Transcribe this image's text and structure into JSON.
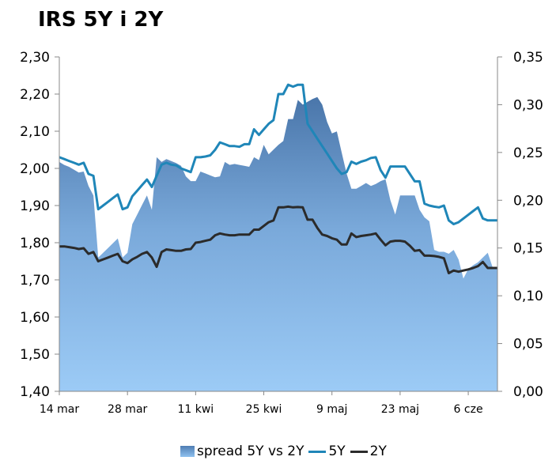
{
  "chart_data": {
    "type": "line",
    "title": "IRS 5Y i 2Y",
    "x_tick_labels": [
      "14 mar",
      "28 mar",
      "11 kwi",
      "25 kwi",
      "9 maj",
      "23 maj",
      "6 cze"
    ],
    "left_axis": {
      "ylim": [
        1.4,
        2.3
      ],
      "ticks": [
        "1,40",
        "1,50",
        "1,60",
        "1,70",
        "1,80",
        "1,90",
        "2,00",
        "2,10",
        "2,20",
        "2,30"
      ]
    },
    "right_axis": {
      "ylim": [
        0.0,
        0.35
      ],
      "ticks": [
        "0,00",
        "0,05",
        "0,10",
        "0,15",
        "0,20",
        "0,25",
        "0,30",
        "0,35"
      ]
    },
    "x_day": [
      0,
      1,
      2,
      3,
      4,
      5,
      6,
      7,
      8,
      9,
      10,
      11,
      12,
      13,
      14,
      15,
      16,
      17,
      18,
      19,
      20,
      21,
      22,
      23,
      24,
      25,
      26,
      27,
      28,
      29,
      30,
      31,
      32,
      33,
      34,
      35,
      36,
      37,
      38,
      39,
      40,
      41,
      42,
      43,
      44,
      45,
      46,
      47,
      48,
      49,
      50,
      51,
      52,
      53,
      54,
      55,
      56,
      57,
      58,
      59,
      60,
      61,
      62,
      63,
      64,
      65,
      66,
      67,
      68,
      69,
      70,
      71,
      72,
      73,
      74,
      75,
      76,
      77,
      78,
      79,
      80,
      81,
      82,
      83,
      84,
      85,
      86,
      87,
      88,
      89,
      90
    ],
    "series": [
      {
        "name": "spread 5Y vs 2Y",
        "axis": "right",
        "type": "area",
        "color": "#6a9bd4",
        "values": [
          0.24,
          0.237,
          0.235,
          0.232,
          0.229,
          0.23,
          0.215,
          0.205,
          0.14,
          0.145,
          0.15,
          0.155,
          0.16,
          0.14,
          0.145,
          0.175,
          0.185,
          0.195,
          0.205,
          0.19,
          0.245,
          0.24,
          0.243,
          0.241,
          0.239,
          0.236,
          0.225,
          0.22,
          0.22,
          0.23,
          0.228,
          0.226,
          0.224,
          0.225,
          0.24,
          0.237,
          0.238,
          0.237,
          0.236,
          0.235,
          0.245,
          0.242,
          0.258,
          0.248,
          0.253,
          0.258,
          0.262,
          0.285,
          0.285,
          0.305,
          0.3,
          0.303,
          0.306,
          0.308,
          0.3,
          0.282,
          0.27,
          0.272,
          0.25,
          0.228,
          0.212,
          0.212,
          0.215,
          0.218,
          0.215,
          0.217,
          0.22,
          0.222,
          0.2,
          0.185,
          0.205,
          0.205,
          0.205,
          0.205,
          0.19,
          0.182,
          0.178,
          0.148,
          0.146,
          0.146,
          0.144,
          0.148,
          0.138,
          0.118,
          0.128,
          0.132,
          0.135,
          0.14,
          0.145,
          0.13,
          0.128
        ]
      },
      {
        "name": "5Y",
        "axis": "left",
        "type": "line",
        "color": "#1f86b8",
        "values": [
          2.03,
          2.025,
          2.02,
          2.015,
          2.01,
          2.015,
          1.985,
          1.98,
          1.89,
          1.9,
          1.91,
          1.92,
          1.93,
          1.89,
          1.895,
          1.925,
          1.94,
          1.955,
          1.97,
          1.95,
          1.98,
          2.01,
          2.015,
          2.01,
          2.008,
          2.0,
          1.995,
          1.99,
          2.03,
          2.03,
          2.032,
          2.035,
          2.05,
          2.07,
          2.065,
          2.06,
          2.06,
          2.058,
          2.065,
          2.065,
          2.105,
          2.09,
          2.105,
          2.12,
          2.13,
          2.2,
          2.2,
          2.225,
          2.22,
          2.225,
          2.225,
          2.12,
          2.1,
          2.08,
          2.06,
          2.04,
          2.02,
          2.0,
          1.985,
          1.99,
          2.018,
          2.012,
          2.018,
          2.022,
          2.028,
          2.03,
          1.995,
          1.975,
          2.005,
          2.005,
          2.005,
          2.005,
          1.985,
          1.965,
          1.965,
          1.905,
          1.9,
          1.897,
          1.895,
          1.9,
          1.86,
          1.85,
          1.855,
          1.865,
          1.875,
          1.885,
          1.895,
          1.865,
          1.86,
          1.86,
          1.86
        ]
      },
      {
        "name": "2Y",
        "axis": "left",
        "type": "line",
        "color": "#2b2b2b",
        "values": [
          1.79,
          1.79,
          1.788,
          1.786,
          1.783,
          1.785,
          1.77,
          1.775,
          1.75,
          1.755,
          1.76,
          1.765,
          1.77,
          1.75,
          1.745,
          1.755,
          1.762,
          1.77,
          1.775,
          1.76,
          1.735,
          1.775,
          1.782,
          1.78,
          1.778,
          1.778,
          1.782,
          1.783,
          1.8,
          1.802,
          1.805,
          1.808,
          1.82,
          1.825,
          1.822,
          1.82,
          1.82,
          1.822,
          1.822,
          1.822,
          1.835,
          1.835,
          1.845,
          1.855,
          1.86,
          1.895,
          1.895,
          1.897,
          1.895,
          1.896,
          1.895,
          1.862,
          1.862,
          1.84,
          1.822,
          1.818,
          1.812,
          1.808,
          1.795,
          1.795,
          1.825,
          1.815,
          1.818,
          1.82,
          1.822,
          1.825,
          1.808,
          1.793,
          1.803,
          1.805,
          1.805,
          1.803,
          1.792,
          1.778,
          1.78,
          1.765,
          1.765,
          1.764,
          1.762,
          1.758,
          1.718,
          1.725,
          1.722,
          1.725,
          1.728,
          1.732,
          1.737,
          1.748,
          1.732,
          1.732,
          1.732
        ]
      }
    ],
    "grid": false,
    "legend": "bottom"
  },
  "legend": {
    "spread": "spread 5Y vs 2Y",
    "y5": "5Y",
    "y2": "2Y"
  }
}
